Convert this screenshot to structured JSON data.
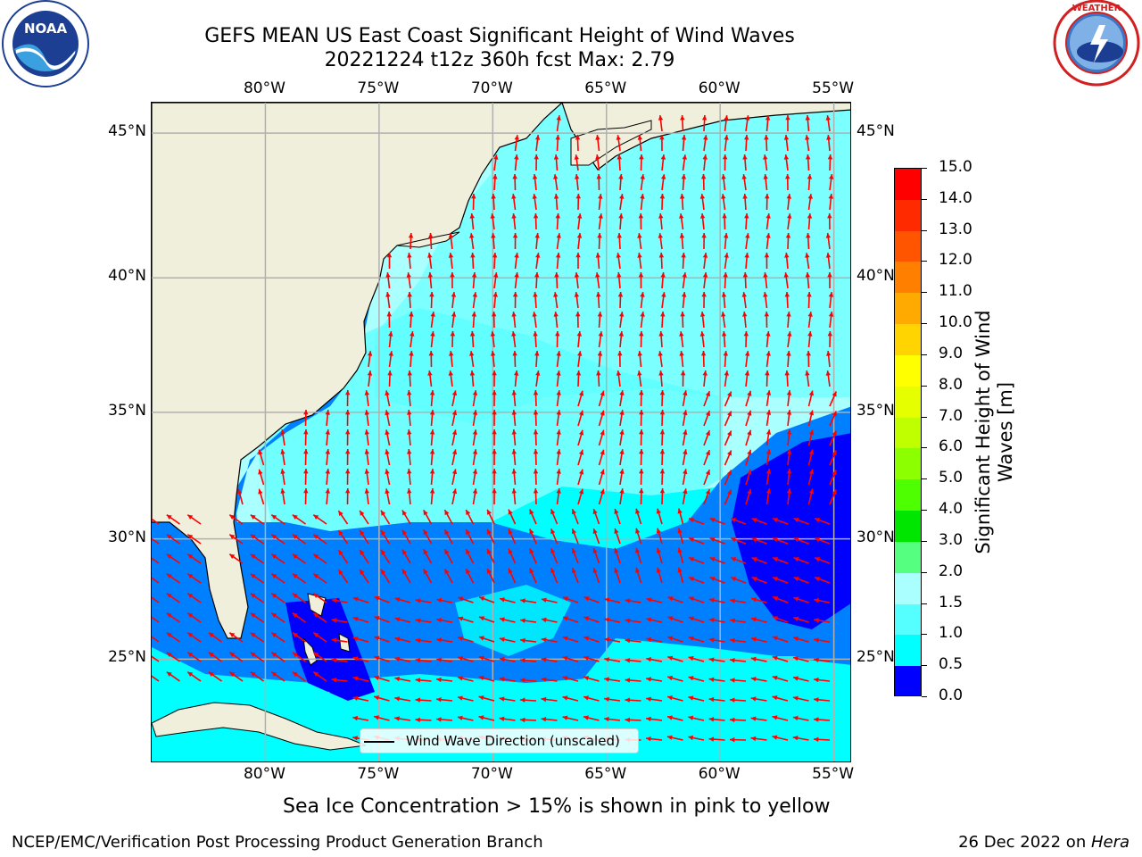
{
  "title": {
    "line1": "GEFS MEAN US East Coast Significant Height of Wind Waves",
    "line2": "20221224 t12z 360h fcst   Max: 2.79"
  },
  "logos": {
    "left": "NOAA",
    "right": "NATIONAL WEATHER SERVICE"
  },
  "map": {
    "lon_labels": [
      "80°W",
      "75°W",
      "70°W",
      "65°W",
      "60°W",
      "55°W"
    ],
    "lat_labels": [
      "45°N",
      "40°N",
      "35°N",
      "30°N",
      "25°N"
    ],
    "lon_range": [
      -85,
      -54.2
    ],
    "lat_range": [
      20.5,
      46
    ],
    "colors": {
      "land": "#efefdc",
      "coast": "#000000",
      "grid": "#b0b0b0",
      "arrow": "#ff0000"
    }
  },
  "legend": {
    "label": "Wind Wave Direction (unscaled)"
  },
  "colorbar": {
    "label": "Significant Height of Wind Waves [m]",
    "ticks": [
      "15.0",
      "14.0",
      "13.0",
      "12.0",
      "11.0",
      "10.0",
      "9.0",
      "8.0",
      "7.0",
      "6.0",
      "5.0",
      "4.0",
      "3.0",
      "2.0",
      "1.5",
      "1.0",
      "0.5",
      "0.0"
    ],
    "colors": [
      "#ff0000",
      "#ff2a00",
      "#ff5500",
      "#ff8000",
      "#ffaa00",
      "#ffd400",
      "#ffff00",
      "#e5ff00",
      "#bfff00",
      "#8cff00",
      "#4dff00",
      "#00e600",
      "#55ff80",
      "#aaffff",
      "#55ffff",
      "#00ffff",
      "#0080ff",
      "#0000ff"
    ]
  },
  "sea_ice_note": "Sea Ice Concentration > 15% is shown in pink to yellow",
  "footer": {
    "left": "NCEP/EMC/Verification Post Processing Product Generation Branch",
    "right_date": "26 Dec 2022 on ",
    "right_host": "Hera"
  }
}
